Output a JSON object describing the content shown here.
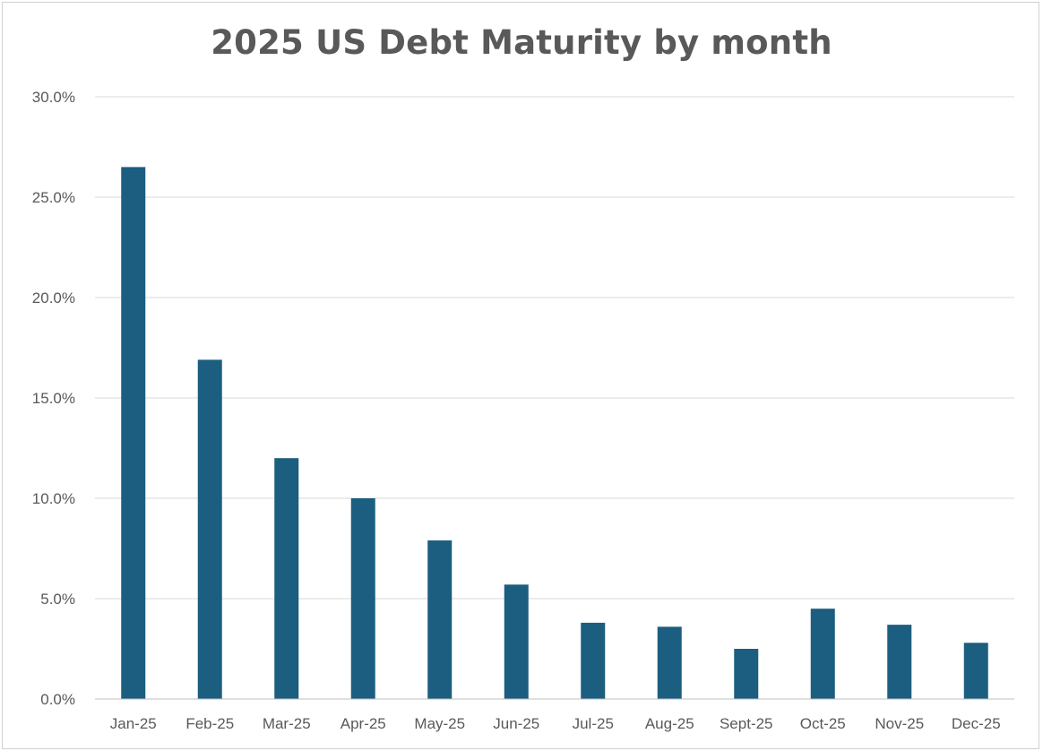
{
  "chart_data": {
    "type": "bar",
    "title": "2025 US Debt Maturity by month",
    "categories": [
      "Jan-25",
      "Feb-25",
      "Mar-25",
      "Apr-25",
      "May-25",
      "Jun-25",
      "Jul-25",
      "Aug-25",
      "Sept-25",
      "Oct-25",
      "Nov-25",
      "Dec-25"
    ],
    "values": [
      26.5,
      16.9,
      12.0,
      10.0,
      7.9,
      5.7,
      3.8,
      3.6,
      2.5,
      4.5,
      3.7,
      2.8
    ],
    "y_ticks": [
      "0.0%",
      "5.0%",
      "10.0%",
      "15.0%",
      "20.0%",
      "25.0%",
      "30.0%"
    ],
    "ylim": [
      0,
      30
    ],
    "xlabel": "",
    "ylabel": "",
    "grid": true,
    "legend": "none",
    "bar_color": "#1b5e80"
  }
}
